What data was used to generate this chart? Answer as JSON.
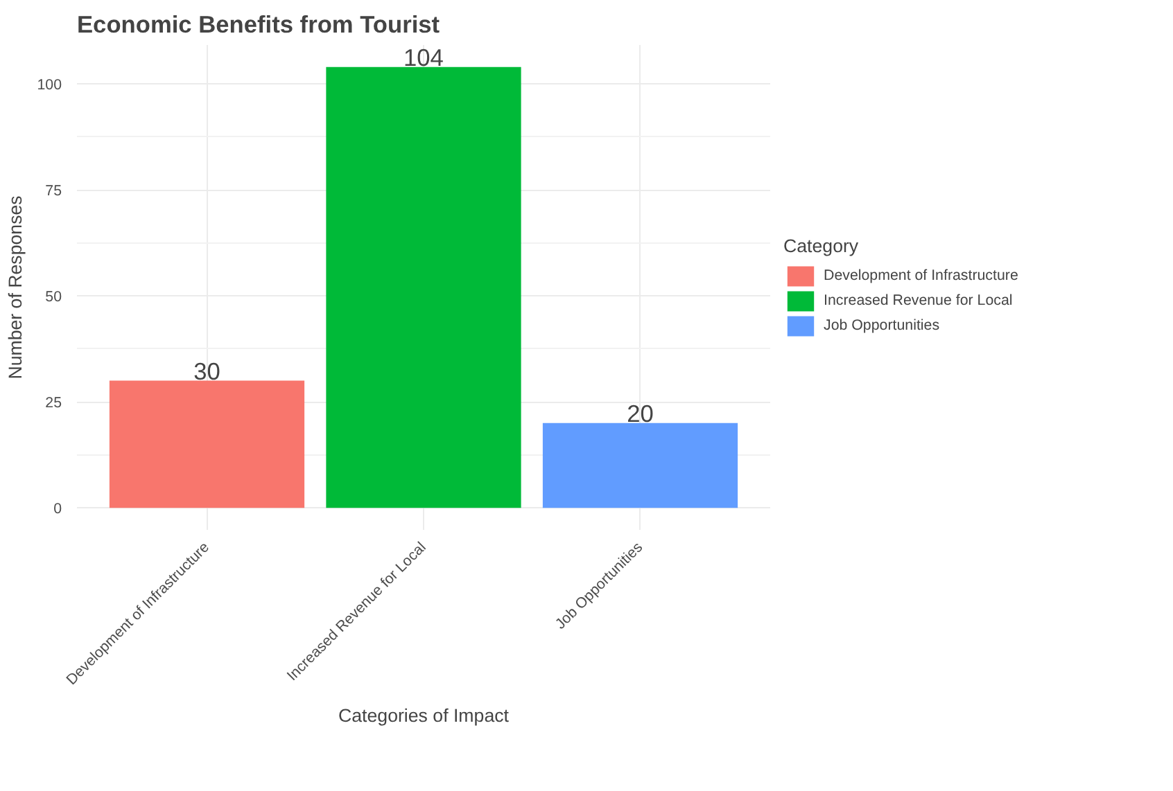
{
  "chart_data": {
    "type": "bar",
    "title": "Economic Benefits from Tourist",
    "xlabel": "Categories of Impact",
    "ylabel": "Number of Responses",
    "legend_title": "Category",
    "categories": [
      "Development of Infrastructure",
      "Increased Revenue for Local",
      "Job Opportunities"
    ],
    "series": [
      {
        "name": "Development of Infrastructure",
        "color": "#f8766d",
        "values": [
          30,
          null,
          null
        ]
      },
      {
        "name": "Increased Revenue for Local",
        "color": "#00ba38",
        "values": [
          null,
          104,
          null
        ]
      },
      {
        "name": "Job Opportunities",
        "color": "#619cff",
        "values": [
          null,
          null,
          20
        ]
      }
    ],
    "ylim": [
      -5.2,
      109.2
    ],
    "yticks": [
      0,
      25,
      50,
      75,
      100
    ],
    "grid": true,
    "legend": "right",
    "data_labels": true
  }
}
